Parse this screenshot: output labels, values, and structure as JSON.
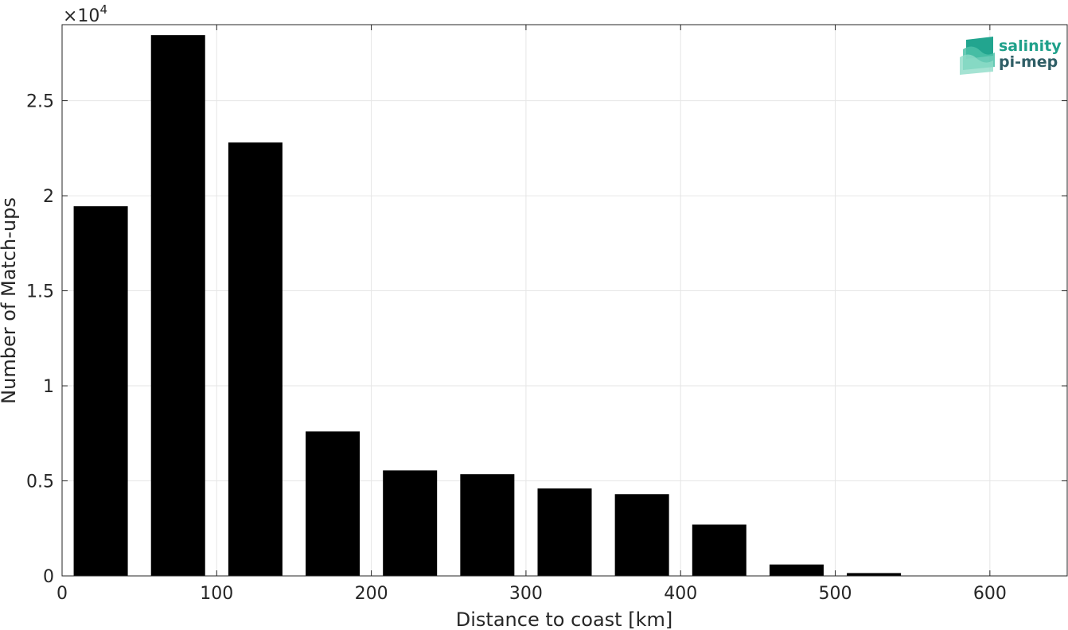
{
  "chart_data": {
    "type": "bar",
    "title": "",
    "xlabel": "Distance to coast [km]",
    "ylabel": "Number of Match-ups",
    "y_exponent_label": "×10",
    "y_exponent_power": "4",
    "xlim": [
      0,
      650
    ],
    "ylim": [
      0,
      29000
    ],
    "x_ticks": [
      0,
      100,
      200,
      300,
      400,
      500,
      600
    ],
    "y_ticks": [
      0,
      5000,
      10000,
      15000,
      20000,
      25000
    ],
    "y_tick_labels": [
      "0",
      "0.5",
      "1",
      "1.5",
      "2",
      "2.5"
    ],
    "bar_width": 35,
    "x": [
      25,
      75,
      125,
      175,
      225,
      275,
      325,
      375,
      425,
      475,
      525,
      575,
      625
    ],
    "values": [
      19450,
      28450,
      22800,
      7600,
      5550,
      5350,
      4600,
      4300,
      2700,
      600,
      150,
      20,
      10
    ],
    "grid": true,
    "bar_color": "#000000"
  },
  "logo": {
    "line1": "salinity",
    "line2": "pi-mep",
    "color1": "#1fa08a",
    "color2": "#2f5e66"
  }
}
